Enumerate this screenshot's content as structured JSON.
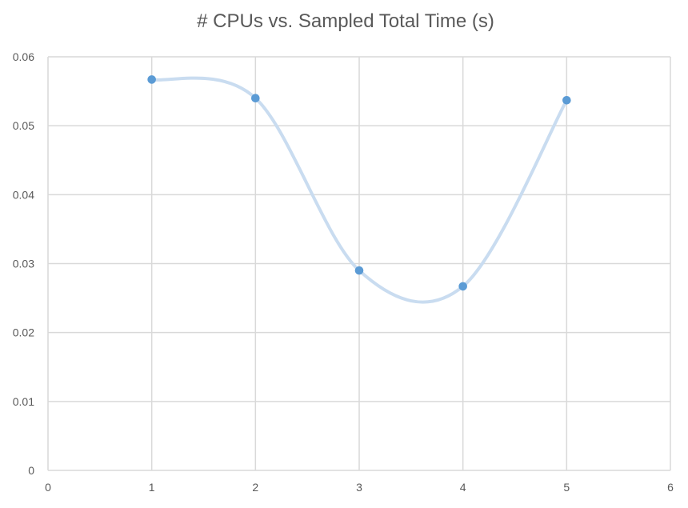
{
  "chart_data": {
    "type": "scatter",
    "title": "# CPUs vs. Sampled Total Time (s)",
    "xlabel": "",
    "ylabel": "",
    "xlim": [
      0,
      6
    ],
    "ylim": [
      0,
      0.06
    ],
    "x_ticks": [
      "0",
      "1",
      "2",
      "3",
      "4",
      "5",
      "6"
    ],
    "y_ticks": [
      "0",
      "0.01",
      "0.02",
      "0.03",
      "0.04",
      "0.05",
      "0.06"
    ],
    "grid": true,
    "smooth_line": true,
    "series": [
      {
        "points": [
          {
            "x": 1,
            "y": 0.0567
          },
          {
            "x": 2,
            "y": 0.054
          },
          {
            "x": 3,
            "y": 0.029
          },
          {
            "x": 4,
            "y": 0.0267
          },
          {
            "x": 5,
            "y": 0.0537
          }
        ],
        "marker_color": "#5b9bd5",
        "line_color": "#c9dcf0"
      }
    ]
  }
}
